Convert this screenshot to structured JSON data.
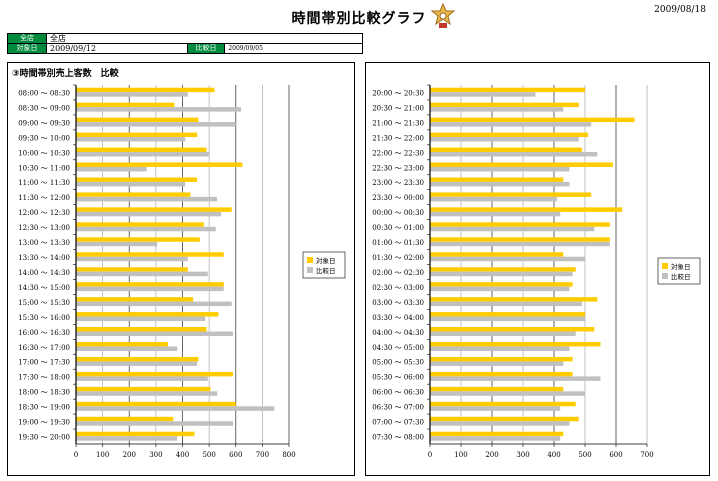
{
  "header": {
    "title": "時間帯別比較グラフ",
    "date": "2009/08/18",
    "store_label": "全店",
    "store_value": "全店",
    "target_label": "対象日",
    "target_value": "2009/09/12",
    "compare_label": "比較日",
    "compare_value": "2009/09/05"
  },
  "colors": {
    "target": "#FFCC00",
    "compare": "#C0C0C0"
  },
  "chart_data": [
    {
      "type": "bar",
      "orientation": "horizontal",
      "title": "③時間帯別売上客数　比較",
      "xlim": [
        0,
        800
      ],
      "xticks": [
        0,
        100,
        200,
        300,
        400,
        500,
        600,
        700,
        800
      ],
      "legend_position": "right",
      "categories": [
        "08:00 ～ 08:30",
        "08:30 ～ 09:00",
        "09:00 ～ 09:30",
        "09:30 ～ 10:00",
        "10:00 ～ 10:30",
        "10:30 ～ 11:00",
        "11:00 ～ 11:30",
        "11:30 ～ 12:00",
        "12:00 ～ 12:30",
        "12:30 ～ 13:00",
        "13:00 ～ 13:30",
        "13:30 ～ 14:00",
        "14:00 ～ 14:30",
        "14:30 ～ 15:00",
        "15:00 ～ 15:30",
        "15:30 ～ 16:00",
        "16:00 ～ 16:30",
        "16:30 ～ 17:00",
        "17:00 ～ 17:30",
        "17:30 ～ 18:00",
        "18:00 ～ 18:30",
        "18:30 ～ 19:00",
        "19:00 ～ 19:30",
        "19:30 ～ 20:00"
      ],
      "series": [
        {
          "name": "対象日",
          "values": [
            520,
            370,
            460,
            455,
            490,
            625,
            455,
            430,
            585,
            480,
            465,
            555,
            420,
            555,
            440,
            535,
            490,
            345,
            460,
            590,
            505,
            600,
            365,
            445
          ]
        },
        {
          "name": "比較日",
          "values": [
            420,
            620,
            600,
            410,
            500,
            265,
            410,
            530,
            545,
            525,
            305,
            420,
            495,
            555,
            585,
            485,
            590,
            380,
            455,
            495,
            530,
            745,
            590,
            380
          ]
        }
      ]
    },
    {
      "type": "bar",
      "orientation": "horizontal",
      "title": "",
      "xlim": [
        0,
        700
      ],
      "xticks": [
        0,
        100,
        200,
        300,
        400,
        500,
        600,
        700
      ],
      "legend_position": "right",
      "categories": [
        "20:00 ～ 20:30",
        "20:30 ～ 21:00",
        "21:00 ～ 21:30",
        "21:30 ～ 22:00",
        "22:00 ～ 22:30",
        "22:30 ～ 23:00",
        "23:00 ～ 23:30",
        "23:30 ～ 00:00",
        "00:00 ～ 00:30",
        "00:30 ～ 01:00",
        "01:00 ～ 01:30",
        "01:30 ～ 02:00",
        "02:00 ～ 02:30",
        "02:30 ～ 03:00",
        "03:00 ～ 03:30",
        "03:30 ～ 04:00",
        "04:00 ～ 04:30",
        "04:30 ～ 05:00",
        "05:00 ～ 05:30",
        "05:30 ～ 06:00",
        "06:00 ～ 06:30",
        "06:30 ～ 07:00",
        "07:00 ～ 07:30",
        "07:30 ～ 08:00"
      ],
      "series": [
        {
          "name": "対象日",
          "values": [
            500,
            480,
            660,
            510,
            490,
            590,
            430,
            520,
            620,
            580,
            580,
            430,
            470,
            460,
            540,
            500,
            530,
            550,
            460,
            460,
            430,
            470,
            480,
            430
          ]
        },
        {
          "name": "比較日",
          "values": [
            340,
            430,
            520,
            480,
            540,
            450,
            450,
            410,
            420,
            530,
            580,
            500,
            460,
            450,
            490,
            500,
            470,
            450,
            430,
            550,
            500,
            420,
            450,
            420
          ]
        }
      ]
    }
  ]
}
